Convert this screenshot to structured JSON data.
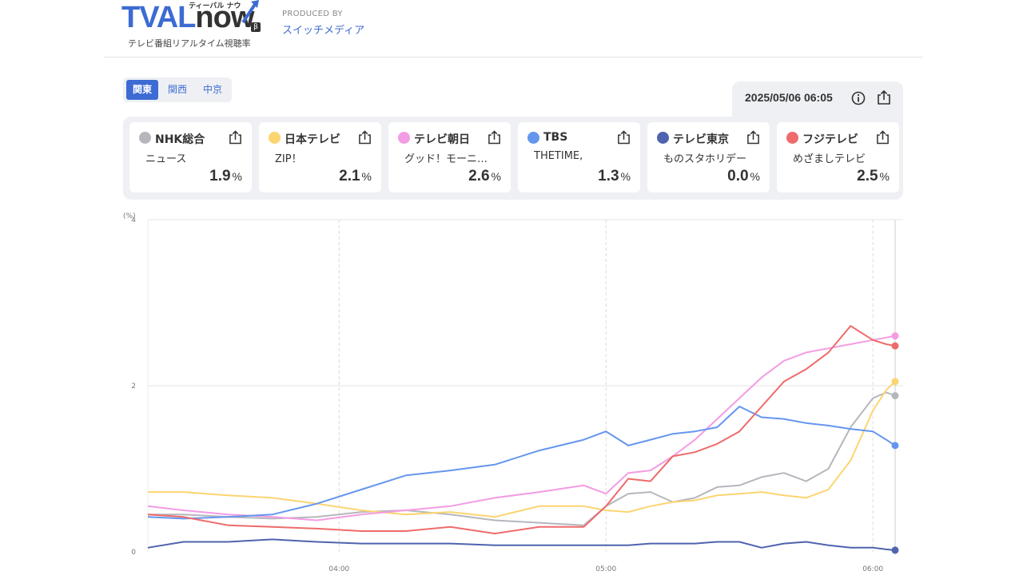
{
  "brand": {
    "logo_tval": "TVAL",
    "logo_now": "now",
    "logo_kana": "ティーバル ナウ",
    "logo_beta": "β",
    "tagline": "テレビ番組リアルタイム視聴率",
    "producer_label": "PRODUCED BY",
    "producer_name": "スイッチメディア"
  },
  "regions": [
    {
      "label": "関東",
      "active": true
    },
    {
      "label": "関西",
      "active": false
    },
    {
      "label": "中京",
      "active": false
    }
  ],
  "timestamp": "2025/05/06 06:05",
  "icons": {
    "info": "info-icon",
    "share": "share-icon"
  },
  "channels": [
    {
      "name": "NHK総合",
      "program": "ニュース",
      "rating": "1.9",
      "unit": "%",
      "color": "#b5b7bd"
    },
    {
      "name": "日本テレビ",
      "program": "ZIP！",
      "rating": "2.1",
      "unit": "%",
      "color": "#fcd571"
    },
    {
      "name": "テレビ朝日",
      "program": "グッド！モーニ…",
      "rating": "2.6",
      "unit": "%",
      "color": "#f39ce3"
    },
    {
      "name": "TBS",
      "program": "THETIME,",
      "rating": "1.3",
      "unit": "%",
      "color": "#6596ee"
    },
    {
      "name": "テレビ東京",
      "program": "ものスタホリデー",
      "rating": "0.0",
      "unit": "%",
      "color": "#4f63ae"
    },
    {
      "name": "フジテレビ",
      "program": "めざましテレビ",
      "rating": "2.5",
      "unit": "%",
      "color": "#ee6b6b"
    }
  ],
  "chart_data": {
    "type": "line",
    "ylabel": "(%)",
    "ylim": [
      0,
      4
    ],
    "yticks": [
      "0",
      "2",
      "4"
    ],
    "xlim": [
      "03:17",
      "06:05"
    ],
    "xticks": [
      "04:00",
      "05:00",
      "06:00"
    ],
    "grid": true,
    "x": [
      "03:17",
      "03:25",
      "03:35",
      "03:45",
      "03:55",
      "04:05",
      "04:15",
      "04:25",
      "04:35",
      "04:45",
      "04:55",
      "05:00",
      "05:05",
      "05:10",
      "05:15",
      "05:20",
      "05:25",
      "05:30",
      "05:35",
      "05:40",
      "05:45",
      "05:50",
      "05:55",
      "06:00",
      "06:03",
      "06:05"
    ],
    "series": [
      {
        "name": "NHK総合",
        "color": "#b5b7bd",
        "values": [
          0.45,
          0.45,
          0.42,
          0.4,
          0.42,
          0.48,
          0.5,
          0.45,
          0.38,
          0.35,
          0.32,
          0.55,
          0.7,
          0.72,
          0.6,
          0.65,
          0.78,
          0.8,
          0.9,
          0.95,
          0.85,
          1.0,
          1.5,
          1.85,
          1.92,
          1.88
        ]
      },
      {
        "name": "日本テレビ",
        "color": "#fcd571",
        "values": [
          0.72,
          0.72,
          0.68,
          0.65,
          0.58,
          0.5,
          0.45,
          0.48,
          0.42,
          0.55,
          0.55,
          0.5,
          0.48,
          0.55,
          0.6,
          0.62,
          0.68,
          0.7,
          0.72,
          0.68,
          0.65,
          0.75,
          1.1,
          1.7,
          1.95,
          2.05
        ]
      },
      {
        "name": "テレビ朝日",
        "color": "#f39ce3",
        "values": [
          0.55,
          0.5,
          0.45,
          0.42,
          0.38,
          0.45,
          0.5,
          0.55,
          0.65,
          0.72,
          0.8,
          0.7,
          0.95,
          0.98,
          1.15,
          1.35,
          1.6,
          1.85,
          2.1,
          2.3,
          2.4,
          2.45,
          2.5,
          2.55,
          2.58,
          2.6
        ]
      },
      {
        "name": "TBS",
        "color": "#6596ee",
        "values": [
          0.42,
          0.4,
          0.42,
          0.45,
          0.58,
          0.75,
          0.92,
          0.98,
          1.05,
          1.22,
          1.35,
          1.45,
          1.28,
          1.35,
          1.42,
          1.45,
          1.5,
          1.75,
          1.62,
          1.6,
          1.55,
          1.52,
          1.48,
          1.45,
          1.35,
          1.28
        ]
      },
      {
        "name": "テレビ東京",
        "color": "#4f63ae",
        "values": [
          0.05,
          0.12,
          0.12,
          0.15,
          0.12,
          0.1,
          0.1,
          0.1,
          0.08,
          0.08,
          0.08,
          0.08,
          0.08,
          0.1,
          0.1,
          0.1,
          0.12,
          0.12,
          0.05,
          0.1,
          0.12,
          0.08,
          0.05,
          0.05,
          0.03,
          0.02
        ]
      },
      {
        "name": "フジテレビ",
        "color": "#ee6b6b",
        "values": [
          0.45,
          0.42,
          0.32,
          0.3,
          0.28,
          0.25,
          0.25,
          0.3,
          0.22,
          0.3,
          0.3,
          0.55,
          0.88,
          0.85,
          1.15,
          1.2,
          1.3,
          1.45,
          1.75,
          2.05,
          2.2,
          2.4,
          2.72,
          2.55,
          2.5,
          2.48
        ]
      }
    ]
  }
}
